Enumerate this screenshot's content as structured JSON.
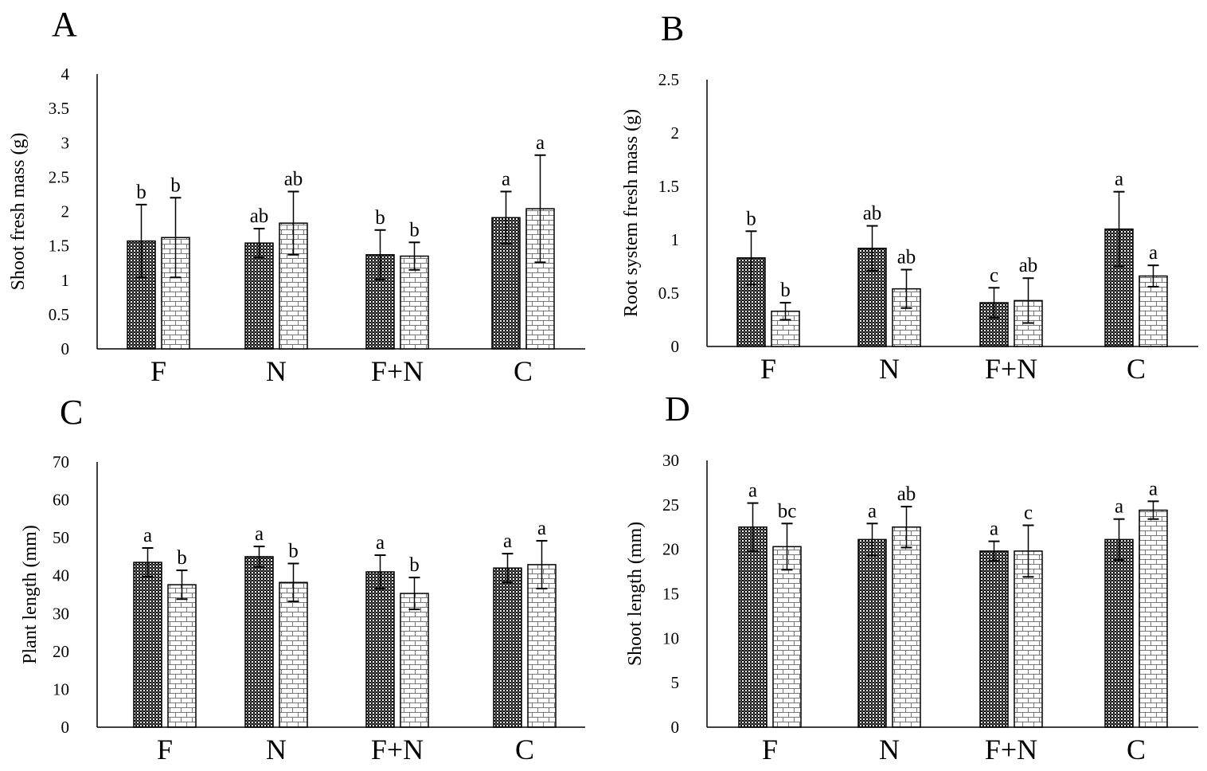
{
  "chart_data": [
    {
      "type": "bar",
      "panel_label": "A",
      "ylabel": "Shoot fresh mass (g)",
      "ylim": [
        0,
        4
      ],
      "yticks": [
        "0",
        "0.5",
        "1",
        "1.5",
        "2",
        "2.5",
        "3",
        "3.5",
        "4"
      ],
      "categories": [
        "F",
        "N",
        "F+N",
        "C"
      ],
      "grid": false,
      "series": [
        {
          "pattern": "dark-checker",
          "values": [
            1.57,
            1.54,
            1.37,
            1.91
          ],
          "errors": [
            0.53,
            0.21,
            0.36,
            0.38
          ],
          "letters": [
            "b",
            "ab",
            "b",
            "a"
          ]
        },
        {
          "pattern": "light-brick",
          "values": [
            1.62,
            1.83,
            1.35,
            2.04
          ],
          "errors": [
            0.58,
            0.46,
            0.2,
            0.78
          ],
          "letters": [
            "b",
            "ab",
            "b",
            "a"
          ]
        }
      ]
    },
    {
      "type": "bar",
      "panel_label": "B",
      "ylabel": "Root system fresh mass (g)",
      "ylim": [
        0,
        2.5
      ],
      "yticks": [
        "0",
        "0.5",
        "1",
        "1.5",
        "2",
        "2.5"
      ],
      "categories": [
        "F",
        "N",
        "F+N",
        "C"
      ],
      "grid": false,
      "series": [
        {
          "pattern": "dark-checker",
          "values": [
            0.83,
            0.92,
            0.41,
            1.1
          ],
          "errors": [
            0.25,
            0.21,
            0.14,
            0.35
          ],
          "letters": [
            "b",
            "ab",
            "c",
            "a"
          ]
        },
        {
          "pattern": "light-brick",
          "values": [
            0.33,
            0.54,
            0.43,
            0.66
          ],
          "errors": [
            0.08,
            0.18,
            0.21,
            0.1
          ],
          "letters": [
            "b",
            "ab",
            "ab",
            "a"
          ]
        }
      ]
    },
    {
      "type": "bar",
      "panel_label": "C",
      "ylabel": "Plant length  (mm)",
      "ylim": [
        0,
        70
      ],
      "yticks": [
        "0",
        "10",
        "20",
        "30",
        "40",
        "50",
        "60",
        "70"
      ],
      "categories": [
        "F",
        "N",
        "F+N",
        "C"
      ],
      "grid": false,
      "series": [
        {
          "pattern": "dark-checker",
          "values": [
            43.5,
            45.0,
            41.0,
            42.0
          ],
          "errors": [
            3.8,
            2.7,
            4.4,
            3.8
          ],
          "letters": [
            "a",
            "a",
            "a",
            "a"
          ]
        },
        {
          "pattern": "light-brick",
          "values": [
            37.6,
            38.2,
            35.3,
            42.9
          ],
          "errors": [
            3.8,
            5.0,
            4.2,
            6.3
          ],
          "letters": [
            "b",
            "b",
            "b",
            "a"
          ]
        }
      ]
    },
    {
      "type": "bar",
      "panel_label": "D",
      "ylabel": "Shoot length  (mm)",
      "ylim": [
        0,
        30
      ],
      "yticks": [
        "0",
        "5",
        "10",
        "15",
        "20",
        "25",
        "30"
      ],
      "categories": [
        "F",
        "N",
        "F+N",
        "C"
      ],
      "grid": false,
      "series": [
        {
          "pattern": "dark-checker",
          "values": [
            22.5,
            21.1,
            19.8,
            21.1
          ],
          "errors": [
            2.7,
            1.8,
            1.1,
            2.3
          ],
          "letters": [
            "a",
            "a",
            "a",
            "a"
          ]
        },
        {
          "pattern": "light-brick",
          "values": [
            20.3,
            22.5,
            19.8,
            24.4
          ],
          "errors": [
            2.6,
            2.3,
            2.9,
            1.0
          ],
          "letters": [
            "bc",
            "ab",
            "c",
            "a"
          ]
        }
      ]
    }
  ]
}
